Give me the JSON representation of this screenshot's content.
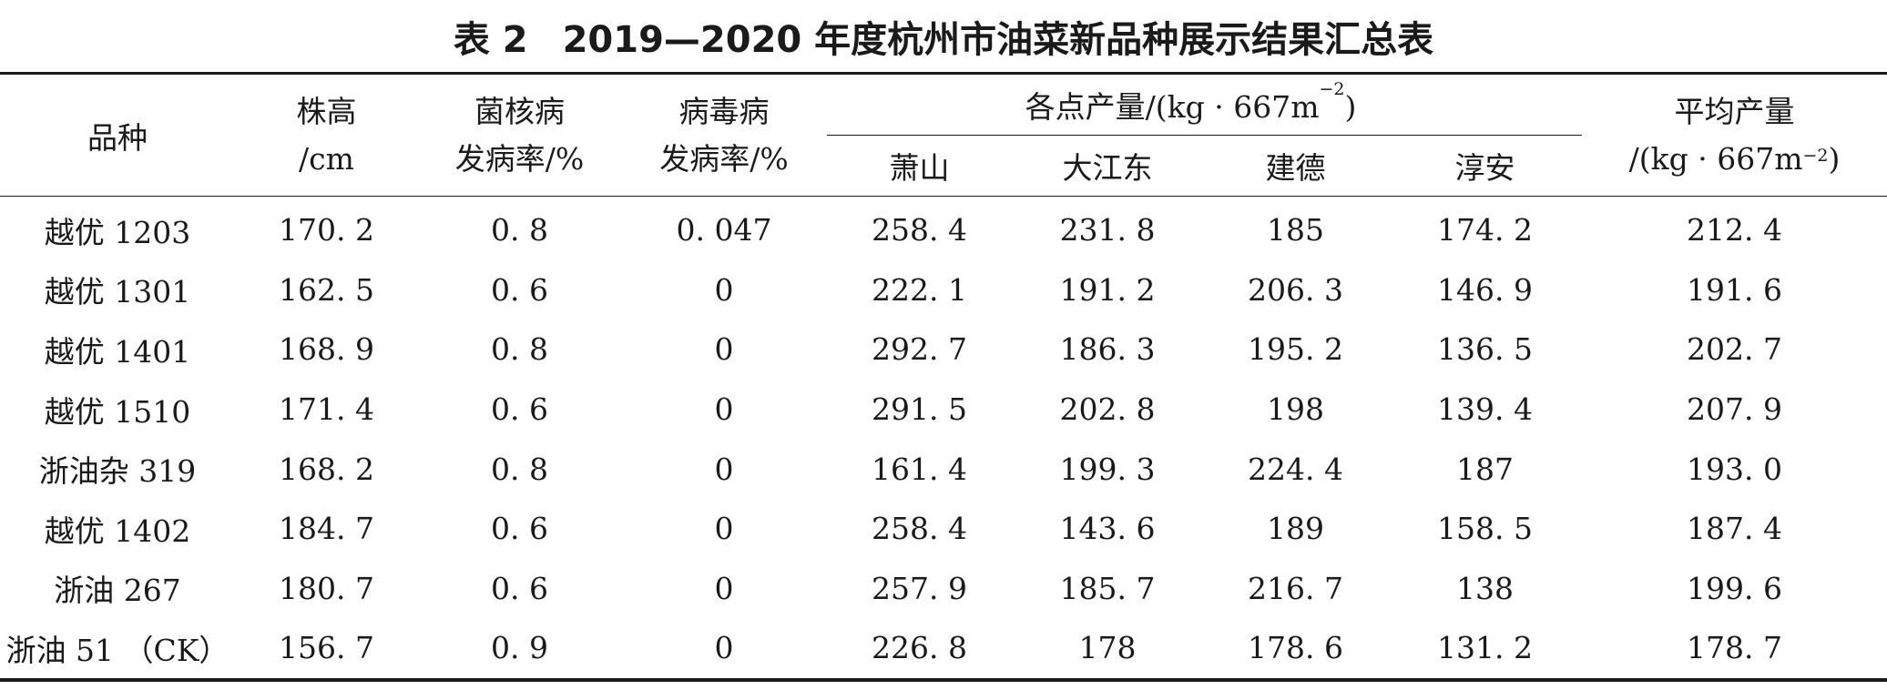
{
  "caption": {
    "label": "表 2",
    "title": "2019—2020 年度杭州市油菜新品种展示结果汇总表"
  },
  "headers": {
    "variety": "品种",
    "height_line1": "株高",
    "height_line2": "/cm",
    "sclerotinia_line1": "菌核病",
    "sclerotinia_line2": "发病率/%",
    "virus_line1": "病毒病",
    "virus_line2": "发病率/%",
    "yield_group_prefix": "各点产量/(kg · 667m",
    "yield_group_exp": "−2",
    "yield_group_suffix": ")",
    "sites": [
      "萧山",
      "大江东",
      "建德",
      "淳安"
    ],
    "avg_line1": "平均产量",
    "avg_line2_prefix": "/(kg · 667m",
    "avg_line2_exp": "−2",
    "avg_line2_suffix": ")"
  },
  "rows": [
    [
      "越优 1203",
      "170. 2",
      "0. 8",
      "0. 047",
      "258. 4",
      "231. 8",
      "185",
      "174. 2",
      "212. 4"
    ],
    [
      "越优 1301",
      "162. 5",
      "0. 6",
      "0",
      "222. 1",
      "191. 2",
      "206. 3",
      "146. 9",
      "191. 6"
    ],
    [
      "越优 1401",
      "168. 9",
      "0. 8",
      "0",
      "292. 7",
      "186. 3",
      "195. 2",
      "136. 5",
      "202. 7"
    ],
    [
      "越优 1510",
      "171. 4",
      "0. 6",
      "0",
      "291. 5",
      "202. 8",
      "198",
      "139. 4",
      "207. 9"
    ],
    [
      "浙油杂 319",
      "168. 2",
      "0. 8",
      "0",
      "161. 4",
      "199. 3",
      "224. 4",
      "187",
      "193. 0"
    ],
    [
      "越优 1402",
      "184. 7",
      "0. 6",
      "0",
      "258. 4",
      "143. 6",
      "189",
      "158. 5",
      "187. 4"
    ],
    [
      "浙油 267",
      "180. 7",
      "0. 6",
      "0",
      "257. 9",
      "185. 7",
      "216. 7",
      "138",
      "199. 6"
    ],
    [
      "浙油 51 （CK）",
      "156. 7",
      "0. 9",
      "0",
      "226. 8",
      "178",
      "178. 6",
      "131. 2",
      "178. 7"
    ]
  ]
}
